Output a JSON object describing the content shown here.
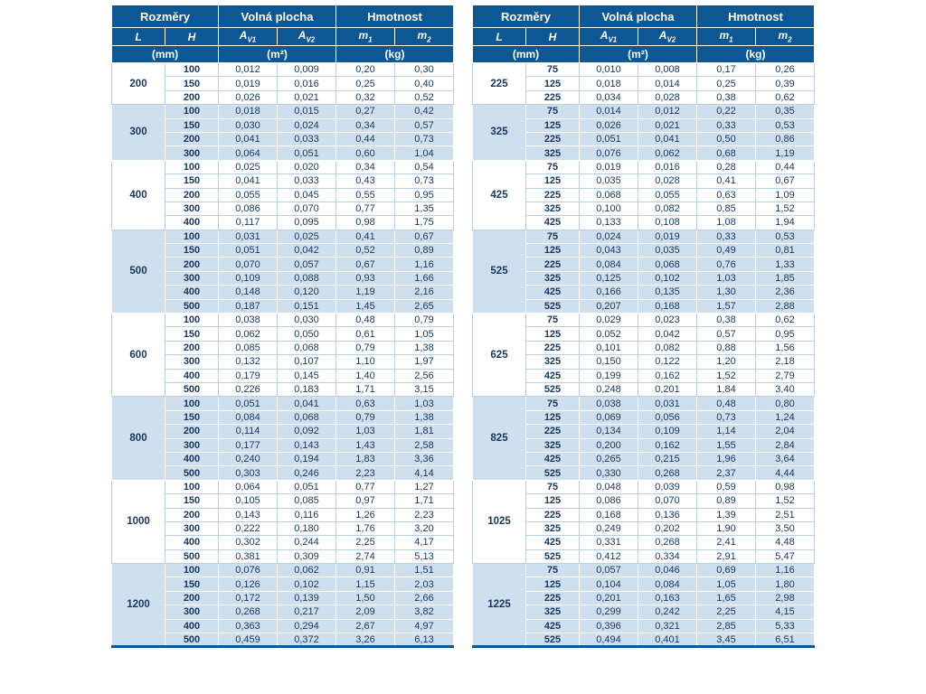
{
  "colors": {
    "header_bg": "#0d5894",
    "row_blue": "#cfdfee",
    "text": "#17375e",
    "border": "#b9cfe4"
  },
  "tables": [
    {
      "id": "left",
      "name": "spec-table-left",
      "header": {
        "sections": [
          "Rozměry",
          "Volná plocha",
          "Hmotnost"
        ],
        "columns": [
          {
            "label": "L",
            "sub": ""
          },
          {
            "label": "H",
            "sub": ""
          },
          {
            "label": "A",
            "sub": "V1"
          },
          {
            "label": "A",
            "sub": "V2"
          },
          {
            "label": "m",
            "sub": "1"
          },
          {
            "label": "m",
            "sub": "2"
          }
        ],
        "units": [
          "(mm)",
          "(m²)",
          "(kg)"
        ]
      },
      "groups": [
        {
          "l": "200",
          "rows": [
            [
              "100",
              "0,012",
              "0,009",
              "0,20",
              "0,30"
            ],
            [
              "150",
              "0,019",
              "0,016",
              "0,25",
              "0,40"
            ],
            [
              "200",
              "0,026",
              "0,021",
              "0,32",
              "0,52"
            ]
          ]
        },
        {
          "l": "300",
          "rows": [
            [
              "100",
              "0,018",
              "0,015",
              "0,27",
              "0,42"
            ],
            [
              "150",
              "0,030",
              "0,024",
              "0,34",
              "0,57"
            ],
            [
              "200",
              "0,041",
              "0,033",
              "0,44",
              "0,73"
            ],
            [
              "300",
              "0,064",
              "0,051",
              "0,60",
              "1,04"
            ]
          ]
        },
        {
          "l": "400",
          "rows": [
            [
              "100",
              "0,025",
              "0,020",
              "0,34",
              "0,54"
            ],
            [
              "150",
              "0,041",
              "0,033",
              "0,43",
              "0,73"
            ],
            [
              "200",
              "0,055",
              "0,045",
              "0,55",
              "0,95"
            ],
            [
              "300",
              "0,086",
              "0,070",
              "0,77",
              "1,35"
            ],
            [
              "400",
              "0,117",
              "0,095",
              "0,98",
              "1,75"
            ]
          ]
        },
        {
          "l": "500",
          "rows": [
            [
              "100",
              "0,031",
              "0,025",
              "0,41",
              "0,67"
            ],
            [
              "150",
              "0,051",
              "0,042",
              "0,52",
              "0,89"
            ],
            [
              "200",
              "0,070",
              "0,057",
              "0,67",
              "1,16"
            ],
            [
              "300",
              "0,109",
              "0,088",
              "0,93",
              "1,66"
            ],
            [
              "400",
              "0,148",
              "0,120",
              "1,19",
              "2,16"
            ],
            [
              "500",
              "0,187",
              "0,151",
              "1,45",
              "2,65"
            ]
          ]
        },
        {
          "l": "600",
          "rows": [
            [
              "100",
              "0,038",
              "0,030",
              "0,48",
              "0,79"
            ],
            [
              "150",
              "0,062",
              "0,050",
              "0,61",
              "1,05"
            ],
            [
              "200",
              "0,085",
              "0,068",
              "0,79",
              "1,38"
            ],
            [
              "300",
              "0,132",
              "0,107",
              "1,10",
              "1,97"
            ],
            [
              "400",
              "0,179",
              "0,145",
              "1,40",
              "2,56"
            ],
            [
              "500",
              "0,226",
              "0,183",
              "1,71",
              "3,15"
            ]
          ]
        },
        {
          "l": "800",
          "rows": [
            [
              "100",
              "0,051",
              "0,041",
              "0,63",
              "1,03"
            ],
            [
              "150",
              "0,084",
              "0,068",
              "0,79",
              "1,38"
            ],
            [
              "200",
              "0,114",
              "0,092",
              "1,03",
              "1,81"
            ],
            [
              "300",
              "0,177",
              "0,143",
              "1,43",
              "2,58"
            ],
            [
              "400",
              "0,240",
              "0,194",
              "1,83",
              "3,36"
            ],
            [
              "500",
              "0,303",
              "0,246",
              "2,23",
              "4,14"
            ]
          ]
        },
        {
          "l": "1000",
          "rows": [
            [
              "100",
              "0,064",
              "0,051",
              "0,77",
              "1,27"
            ],
            [
              "150",
              "0,105",
              "0,085",
              "0,97",
              "1,71"
            ],
            [
              "200",
              "0,143",
              "0,116",
              "1,26",
              "2,23"
            ],
            [
              "300",
              "0,222",
              "0,180",
              "1,76",
              "3,20"
            ],
            [
              "400",
              "0,302",
              "0,244",
              "2,25",
              "4,17"
            ],
            [
              "500",
              "0,381",
              "0,309",
              "2,74",
              "5,13"
            ]
          ]
        },
        {
          "l": "1200",
          "rows": [
            [
              "100",
              "0,076",
              "0,062",
              "0,91",
              "1,51"
            ],
            [
              "150",
              "0,126",
              "0,102",
              "1,15",
              "2,03"
            ],
            [
              "200",
              "0,172",
              "0,139",
              "1,50",
              "2,66"
            ],
            [
              "300",
              "0,268",
              "0,217",
              "2,09",
              "3,82"
            ],
            [
              "400",
              "0,363",
              "0,294",
              "2,67",
              "4,97"
            ],
            [
              "500",
              "0,459",
              "0,372",
              "3,26",
              "6,13"
            ]
          ]
        }
      ]
    },
    {
      "id": "right",
      "name": "spec-table-right",
      "header": {
        "sections": [
          "Rozměry",
          "Volná plocha",
          "Hmotnost"
        ],
        "columns": [
          {
            "label": "L",
            "sub": ""
          },
          {
            "label": "H",
            "sub": ""
          },
          {
            "label": "A",
            "sub": "V1"
          },
          {
            "label": "A",
            "sub": "V2"
          },
          {
            "label": "m",
            "sub": "1"
          },
          {
            "label": "m",
            "sub": "2"
          }
        ],
        "units": [
          "(mm)",
          "(m²)",
          "(kg)"
        ]
      },
      "groups": [
        {
          "l": "225",
          "rows": [
            [
              "75",
              "0,010",
              "0,008",
              "0,17",
              "0,26"
            ],
            [
              "125",
              "0,018",
              "0,014",
              "0,25",
              "0,39"
            ],
            [
              "225",
              "0,034",
              "0,028",
              "0,38",
              "0,62"
            ]
          ]
        },
        {
          "l": "325",
          "rows": [
            [
              "75",
              "0,014",
              "0,012",
              "0,22",
              "0,35"
            ],
            [
              "125",
              "0,026",
              "0,021",
              "0,33",
              "0,53"
            ],
            [
              "225",
              "0,051",
              "0,041",
              "0,50",
              "0,86"
            ],
            [
              "325",
              "0,076",
              "0,062",
              "0,68",
              "1,19"
            ]
          ]
        },
        {
          "l": "425",
          "rows": [
            [
              "75",
              "0,019",
              "0,016",
              "0,28",
              "0,44"
            ],
            [
              "125",
              "0,035",
              "0,028",
              "0,41",
              "0,67"
            ],
            [
              "225",
              "0,068",
              "0,055",
              "0,63",
              "1,09"
            ],
            [
              "325",
              "0,100",
              "0,082",
              "0,85",
              "1,52"
            ],
            [
              "425",
              "0,133",
              "0,108",
              "1,08",
              "1,94"
            ]
          ]
        },
        {
          "l": "525",
          "rows": [
            [
              "75",
              "0,024",
              "0,019",
              "0,33",
              "0,53"
            ],
            [
              "125",
              "0,043",
              "0,035",
              "0,49",
              "0,81"
            ],
            [
              "225",
              "0,084",
              "0,068",
              "0,76",
              "1,33"
            ],
            [
              "325",
              "0,125",
              "0,102",
              "1,03",
              "1,85"
            ],
            [
              "425",
              "0,166",
              "0,135",
              "1,30",
              "2,36"
            ],
            [
              "525",
              "0,207",
              "0,168",
              "1,57",
              "2,88"
            ]
          ]
        },
        {
          "l": "625",
          "rows": [
            [
              "75",
              "0,029",
              "0,023",
              "0,38",
              "0,62"
            ],
            [
              "125",
              "0,052",
              "0,042",
              "0,57",
              "0,95"
            ],
            [
              "225",
              "0,101",
              "0,082",
              "0,88",
              "1,56"
            ],
            [
              "325",
              "0,150",
              "0,122",
              "1,20",
              "2,18"
            ],
            [
              "425",
              "0,199",
              "0,162",
              "1,52",
              "2,79"
            ],
            [
              "525",
              "0,248",
              "0,201",
              "1,84",
              "3,40"
            ]
          ]
        },
        {
          "l": "825",
          "rows": [
            [
              "75",
              "0,038",
              "0,031",
              "0,48",
              "0,80"
            ],
            [
              "125",
              "0,069",
              "0,056",
              "0,73",
              "1,24"
            ],
            [
              "225",
              "0,134",
              "0,109",
              "1,14",
              "2,04"
            ],
            [
              "325",
              "0,200",
              "0,162",
              "1,55",
              "2,84"
            ],
            [
              "425",
              "0,265",
              "0,215",
              "1,96",
              "3,64"
            ],
            [
              "525",
              "0,330",
              "0,268",
              "2,37",
              "4,44"
            ]
          ]
        },
        {
          "l": "1025",
          "rows": [
            [
              "75",
              "0,048",
              "0,039",
              "0,59",
              "0,98"
            ],
            [
              "125",
              "0,086",
              "0,070",
              "0,89",
              "1,52"
            ],
            [
              "225",
              "0,168",
              "0,136",
              "1,39",
              "2,51"
            ],
            [
              "325",
              "0,249",
              "0,202",
              "1,90",
              "3,50"
            ],
            [
              "425",
              "0,331",
              "0,268",
              "2,41",
              "4,48"
            ],
            [
              "525",
              "0,412",
              "0,334",
              "2,91",
              "5,47"
            ]
          ]
        },
        {
          "l": "1225",
          "rows": [
            [
              "75",
              "0,057",
              "0,046",
              "0,69",
              "1,16"
            ],
            [
              "125",
              "0,104",
              "0,084",
              "1,05",
              "1,80"
            ],
            [
              "225",
              "0,201",
              "0,163",
              "1,65",
              "2,98"
            ],
            [
              "325",
              "0,299",
              "0,242",
              "2,25",
              "4,15"
            ],
            [
              "425",
              "0,396",
              "0,321",
              "2,85",
              "5,33"
            ],
            [
              "525",
              "0,494",
              "0,401",
              "3,45",
              "6,51"
            ]
          ]
        }
      ]
    }
  ]
}
